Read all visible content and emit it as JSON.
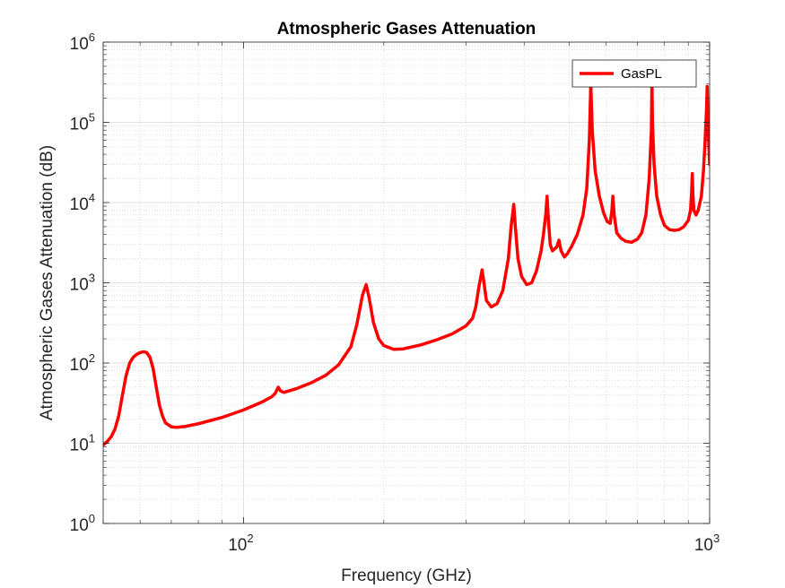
{
  "chart_data": {
    "type": "line",
    "title": "Atmospheric Gases Attenuation",
    "xlabel": "Frequency (GHz)",
    "ylabel": "Atmospheric Gases Attenuation (dB)",
    "xscale": "log",
    "yscale": "log",
    "xlim": [
      50,
      1000
    ],
    "ylim": [
      1,
      1000000
    ],
    "x_ticks": [
      {
        "value": 100,
        "base": "10",
        "exp": "2"
      },
      {
        "value": 1000,
        "base": "10",
        "exp": "3"
      }
    ],
    "y_ticks": [
      {
        "value": 1,
        "base": "10",
        "exp": "0"
      },
      {
        "value": 10,
        "base": "10",
        "exp": "1"
      },
      {
        "value": 100,
        "base": "10",
        "exp": "2"
      },
      {
        "value": 1000,
        "base": "10",
        "exp": "3"
      },
      {
        "value": 10000,
        "base": "10",
        "exp": "4"
      },
      {
        "value": 100000,
        "base": "10",
        "exp": "5"
      },
      {
        "value": 1000000,
        "base": "10",
        "exp": "6"
      }
    ],
    "grid": true,
    "minor_grid": true,
    "legend_position": "top-right",
    "series": [
      {
        "name": "GasPL",
        "color": "#ff0000",
        "points": [
          [
            50,
            9.5
          ],
          [
            51,
            10.5
          ],
          [
            52,
            12
          ],
          [
            53,
            15
          ],
          [
            54,
            22
          ],
          [
            55,
            40
          ],
          [
            56,
            70
          ],
          [
            57,
            100
          ],
          [
            58,
            118
          ],
          [
            59,
            128
          ],
          [
            60,
            135
          ],
          [
            61,
            138
          ],
          [
            62,
            135
          ],
          [
            63,
            118
          ],
          [
            64,
            85
          ],
          [
            65,
            50
          ],
          [
            66,
            30
          ],
          [
            67,
            22
          ],
          [
            68,
            18
          ],
          [
            70,
            16
          ],
          [
            72,
            15.8
          ],
          [
            75,
            16.2
          ],
          [
            80,
            17.5
          ],
          [
            90,
            21
          ],
          [
            100,
            26
          ],
          [
            110,
            33
          ],
          [
            115,
            38
          ],
          [
            117,
            42
          ],
          [
            118.75,
            50
          ],
          [
            120,
            45
          ],
          [
            122,
            43
          ],
          [
            130,
            48
          ],
          [
            140,
            57
          ],
          [
            150,
            70
          ],
          [
            160,
            95
          ],
          [
            170,
            160
          ],
          [
            175,
            300
          ],
          [
            180,
            700
          ],
          [
            183.3,
            950
          ],
          [
            186,
            650
          ],
          [
            190,
            320
          ],
          [
            195,
            200
          ],
          [
            200,
            165
          ],
          [
            210,
            148
          ],
          [
            220,
            150
          ],
          [
            240,
            168
          ],
          [
            260,
            195
          ],
          [
            280,
            230
          ],
          [
            300,
            290
          ],
          [
            310,
            360
          ],
          [
            315,
            500
          ],
          [
            320,
            900
          ],
          [
            325,
            1450
          ],
          [
            328,
            1000
          ],
          [
            332,
            600
          ],
          [
            340,
            500
          ],
          [
            350,
            550
          ],
          [
            360,
            800
          ],
          [
            370,
            2000
          ],
          [
            375,
            5000
          ],
          [
            380,
            9500
          ],
          [
            383,
            5000
          ],
          [
            388,
            2000
          ],
          [
            395,
            1200
          ],
          [
            405,
            950
          ],
          [
            415,
            1000
          ],
          [
            425,
            1400
          ],
          [
            435,
            2500
          ],
          [
            440,
            4000
          ],
          [
            445,
            7000
          ],
          [
            448,
            12000
          ],
          [
            451,
            6000
          ],
          [
            455,
            3000
          ],
          [
            460,
            2500
          ],
          [
            470,
            2800
          ],
          [
            475,
            3400
          ],
          [
            480,
            2500
          ],
          [
            488,
            2100
          ],
          [
            495,
            2300
          ],
          [
            505,
            2800
          ],
          [
            520,
            4000
          ],
          [
            535,
            7000
          ],
          [
            545,
            15000
          ],
          [
            552,
            60000
          ],
          [
            556,
            300000
          ],
          [
            560,
            80000
          ],
          [
            568,
            25000
          ],
          [
            580,
            12000
          ],
          [
            592,
            7500
          ],
          [
            603,
            5800
          ],
          [
            612,
            5500
          ],
          [
            617,
            8000
          ],
          [
            620,
            12000
          ],
          [
            624,
            7000
          ],
          [
            632,
            4200
          ],
          [
            645,
            3600
          ],
          [
            660,
            3300
          ],
          [
            680,
            3200
          ],
          [
            700,
            3500
          ],
          [
            715,
            4200
          ],
          [
            730,
            7000
          ],
          [
            742,
            20000
          ],
          [
            750,
            80000
          ],
          [
            752,
            350000
          ],
          [
            754,
            100000
          ],
          [
            760,
            30000
          ],
          [
            770,
            12000
          ],
          [
            785,
            7000
          ],
          [
            800,
            5200
          ],
          [
            820,
            4600
          ],
          [
            840,
            4500
          ],
          [
            860,
            4600
          ],
          [
            880,
            5000
          ],
          [
            900,
            6000
          ],
          [
            910,
            8000
          ],
          [
            915,
            14000
          ],
          [
            918,
            23000
          ],
          [
            921,
            12000
          ],
          [
            925,
            8000
          ],
          [
            935,
            7000
          ],
          [
            945,
            8000
          ],
          [
            960,
            12000
          ],
          [
            970,
            25000
          ],
          [
            978,
            60000
          ],
          [
            985,
            150000
          ],
          [
            988,
            280000
          ],
          [
            991,
            120000
          ],
          [
            995,
            60000
          ],
          [
            1000,
            30000
          ]
        ]
      }
    ]
  }
}
